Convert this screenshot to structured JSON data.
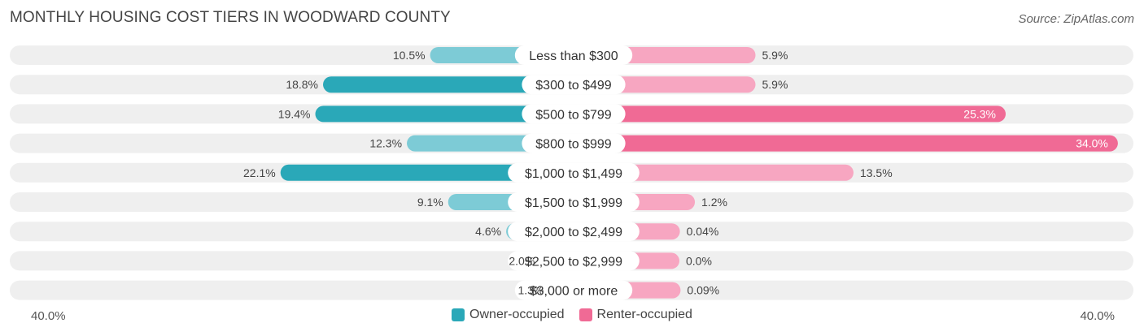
{
  "title": "MONTHLY HOUSING COST TIERS IN WOODWARD COUNTY",
  "source": "Source: ZipAtlas.com",
  "colors": {
    "owner_strong": "#2aa8b8",
    "owner_light": "#7dcbd6",
    "renter_strong": "#f06a95",
    "renter_light": "#f7a6c1",
    "row_bg": "#efefef"
  },
  "chart_data": {
    "type": "bar",
    "orientation": "horizontal-diverging",
    "categories": [
      "Less than $300",
      "$300 to $499",
      "$500 to $799",
      "$800 to $999",
      "$1,000 to $1,499",
      "$1,500 to $1,999",
      "$2,000 to $2,499",
      "$2,500 to $2,999",
      "$3,000 or more"
    ],
    "series": [
      {
        "name": "Owner-occupied",
        "values": [
          10.5,
          18.8,
          19.4,
          12.3,
          22.1,
          9.1,
          4.6,
          2.0,
          1.3
        ],
        "labels": [
          "10.5%",
          "18.8%",
          "19.4%",
          "12.3%",
          "22.1%",
          "9.1%",
          "4.6%",
          "2.0%",
          "1.3%"
        ]
      },
      {
        "name": "Renter-occupied",
        "values": [
          5.9,
          5.9,
          25.3,
          34.0,
          13.5,
          1.2,
          0.04,
          0.0,
          0.09
        ],
        "labels": [
          "5.9%",
          "5.9%",
          "25.3%",
          "34.0%",
          "13.5%",
          "1.2%",
          "0.04%",
          "0.0%",
          "0.09%"
        ]
      }
    ],
    "xlim": [
      -40,
      40
    ],
    "axis_labels": {
      "left": "40.0%",
      "right": "40.0%"
    },
    "legend": [
      "Owner-occupied",
      "Renter-occupied"
    ],
    "legend_position": "bottom-center"
  }
}
